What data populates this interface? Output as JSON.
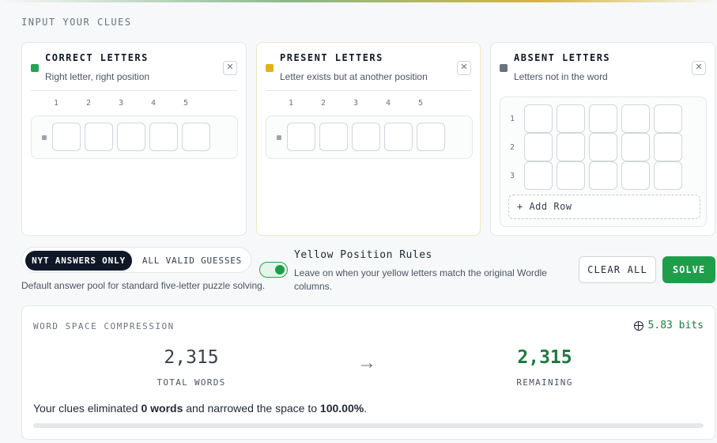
{
  "section_title": "INPUT YOUR CLUES",
  "colors": {
    "correct": "#22a552",
    "present": "#e0b21b",
    "absent": "#6b7280",
    "solve": "#1e9e4a"
  },
  "panels": {
    "correct": {
      "title": "CORRECT LETTERS",
      "subtitle": "Right letter, right position",
      "close_icon": "close-icon",
      "columns": [
        "1",
        "2",
        "3",
        "4",
        "5"
      ],
      "rows": [
        [
          "",
          "",
          "",
          "",
          ""
        ]
      ]
    },
    "present": {
      "title": "PRESENT LETTERS",
      "subtitle": "Letter exists but at another position",
      "close_icon": "close-icon",
      "columns": [
        "1",
        "2",
        "3",
        "4",
        "5"
      ],
      "rows": [
        [
          "",
          "",
          "",
          "",
          ""
        ]
      ]
    },
    "absent": {
      "title": "ABSENT LETTERS",
      "subtitle": "Letters not in the word",
      "close_icon": "close-icon",
      "row_numbers": [
        "1",
        "2",
        "3"
      ],
      "add_row_label": "+ Add Row"
    }
  },
  "pool": {
    "options": [
      "NYT ANSWERS ONLY",
      "ALL VALID GUESSES"
    ],
    "selected": "NYT ANSWERS ONLY",
    "description": "Default answer pool for standard five-letter puzzle solving."
  },
  "yellow_rules": {
    "title": "Yellow Position Rules",
    "enabled": true,
    "description": "Leave on when your yellow letters match the original Wordle columns."
  },
  "actions": {
    "clear_label": "CLEAR ALL",
    "solve_label": "SOLVE"
  },
  "stats": {
    "title": "WORD SPACE COMPRESSION",
    "bits": "5.83 bits",
    "total_value": "2,315",
    "total_label": "TOTAL WORDS",
    "arrow": "→",
    "remaining_value": "2,315",
    "remaining_label": "REMAINING",
    "summary_pre": "Your clues eliminated ",
    "summary_words": "0 words",
    "summary_mid": " and narrowed the space to ",
    "summary_pct": "100.00%",
    "summary_end": ".",
    "eliminated_fraction": 0
  }
}
